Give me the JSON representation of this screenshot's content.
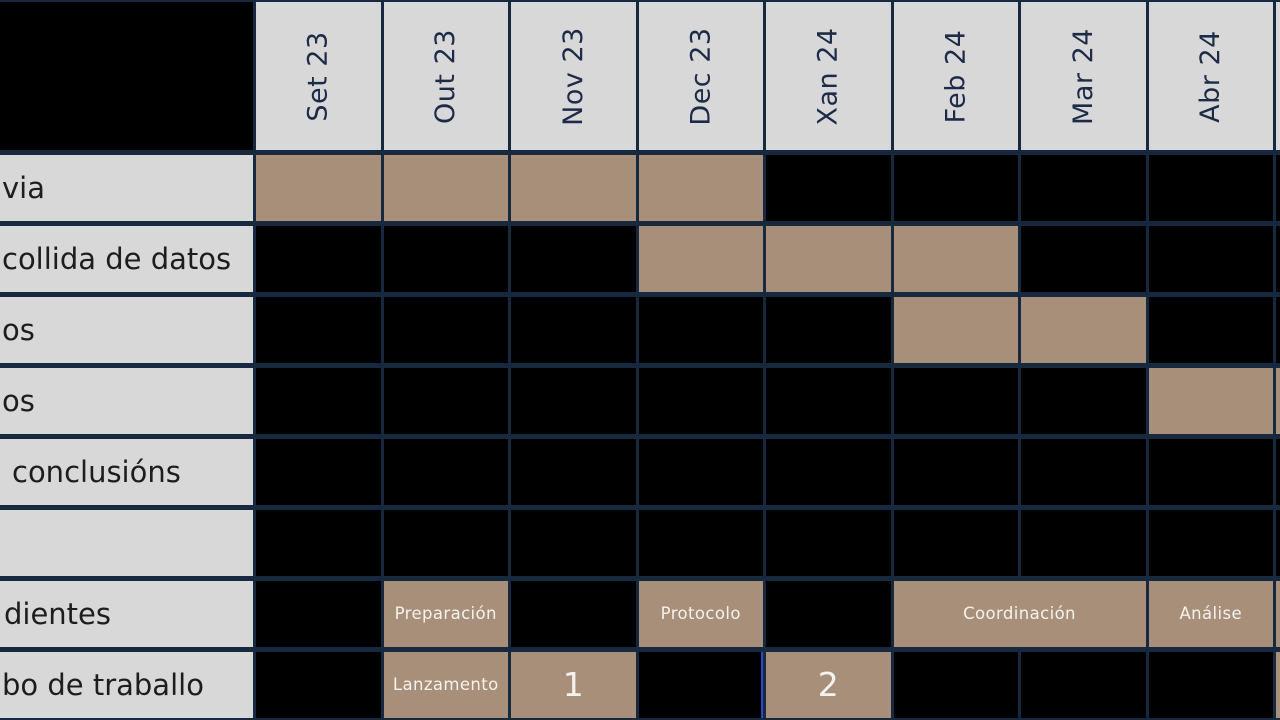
{
  "colors": {
    "grid_line": "#16293f",
    "bar_fill": "#a78f7a",
    "header_bg": "#d8d8d8",
    "label_bg": "#d8d8d8",
    "empty_cell": "#000000",
    "header_text": "#1c2b47",
    "label_text": "#1d1d1d",
    "bar_text": "#f5f2ee",
    "highlight_line": "#2d47c9"
  },
  "months": [
    "Set 23",
    "Out 23",
    "Nov 23",
    "Dec 23",
    "Xan 24",
    "Feb 24",
    "Mar 24",
    "Abr 24",
    ""
  ],
  "rows": [
    {
      "label": "via",
      "indent": 2,
      "cells": [
        {
          "t": "b"
        },
        {
          "t": "b"
        },
        {
          "t": "b"
        },
        {
          "t": "b"
        },
        {
          "t": "e"
        },
        {
          "t": "e"
        },
        {
          "t": "e"
        },
        {
          "t": "e"
        },
        {
          "t": "e"
        }
      ]
    },
    {
      "label": "collida de datos",
      "indent": 2,
      "cells": [
        {
          "t": "e"
        },
        {
          "t": "e"
        },
        {
          "t": "e"
        },
        {
          "t": "b"
        },
        {
          "t": "b"
        },
        {
          "t": "b"
        },
        {
          "t": "e"
        },
        {
          "t": "e"
        },
        {
          "t": "e"
        }
      ]
    },
    {
      "label": "os",
      "indent": 2,
      "cells": [
        {
          "t": "e"
        },
        {
          "t": "e"
        },
        {
          "t": "e"
        },
        {
          "t": "e"
        },
        {
          "t": "e"
        },
        {
          "t": "b"
        },
        {
          "t": "b"
        },
        {
          "t": "e"
        },
        {
          "t": "e"
        }
      ]
    },
    {
      "label": "os",
      "indent": 2,
      "cells": [
        {
          "t": "e"
        },
        {
          "t": "e"
        },
        {
          "t": "e"
        },
        {
          "t": "e"
        },
        {
          "t": "e"
        },
        {
          "t": "e"
        },
        {
          "t": "e"
        },
        {
          "t": "b"
        },
        {
          "t": "b"
        }
      ]
    },
    {
      "label": "conclusións",
      "indent": 12,
      "cells": [
        {
          "t": "e"
        },
        {
          "t": "e"
        },
        {
          "t": "e"
        },
        {
          "t": "e"
        },
        {
          "t": "e"
        },
        {
          "t": "e"
        },
        {
          "t": "e"
        },
        {
          "t": "e"
        },
        {
          "t": "e"
        }
      ]
    },
    {
      "label": "",
      "indent": 2,
      "cells": [
        {
          "t": "e"
        },
        {
          "t": "e"
        },
        {
          "t": "e"
        },
        {
          "t": "e"
        },
        {
          "t": "e"
        },
        {
          "t": "e"
        },
        {
          "t": "e"
        },
        {
          "t": "e"
        },
        {
          "t": "e"
        }
      ]
    },
    {
      "label": "dientes",
      "indent": 4,
      "cells": [
        {
          "t": "e"
        },
        {
          "t": "b",
          "label": "Preparación"
        },
        {
          "t": "e"
        },
        {
          "t": "b",
          "label": "Protocolo"
        },
        {
          "t": "e"
        },
        {
          "t": "b",
          "label": "Coordinación",
          "span": 2
        },
        {
          "t": "b",
          "label": "Análise"
        },
        {
          "t": "b"
        }
      ]
    },
    {
      "label": "bo de traballo",
      "indent": 2,
      "cells": [
        {
          "t": "e"
        },
        {
          "t": "b",
          "label": "Lanzamento"
        },
        {
          "t": "b",
          "label": "1",
          "big": true
        },
        {
          "t": "e",
          "hl": true
        },
        {
          "t": "b",
          "label": "2",
          "big": true
        },
        {
          "t": "e"
        },
        {
          "t": "e"
        },
        {
          "t": "e"
        },
        {
          "t": "b"
        }
      ]
    }
  ],
  "chart_data": {
    "type": "gantt",
    "columns": [
      "Set 23",
      "Out 23",
      "Nov 23",
      "Dec 23",
      "Xan 24",
      "Feb 24",
      "Mar 24",
      "Abr 24"
    ],
    "tasks": [
      {
        "label": "via",
        "bars": [
          {
            "from": "Set 23",
            "to": "Dec 23",
            "text": ""
          }
        ]
      },
      {
        "label": "collida de datos",
        "bars": [
          {
            "from": "Dec 23",
            "to": "Feb 24",
            "text": ""
          }
        ]
      },
      {
        "label": "os",
        "bars": [
          {
            "from": "Feb 24",
            "to": "Mar 24",
            "text": ""
          }
        ]
      },
      {
        "label": "os",
        "bars": [
          {
            "from": "Abr 24",
            "to": "Abr 24",
            "text": "",
            "continues_offscreen": true
          }
        ]
      },
      {
        "label": "conclusións",
        "bars": []
      },
      {
        "label": "",
        "bars": []
      },
      {
        "label": "dientes",
        "bars": [
          {
            "from": "Out 23",
            "to": "Out 23",
            "text": "Preparación"
          },
          {
            "from": "Dec 23",
            "to": "Dec 23",
            "text": "Protocolo"
          },
          {
            "from": "Feb 24",
            "to": "Mar 24",
            "text": "Coordinación"
          },
          {
            "from": "Abr 24",
            "to": "Abr 24",
            "text": "Análise",
            "continues_offscreen": true
          }
        ]
      },
      {
        "label": "bo de traballo",
        "bars": [
          {
            "from": "Out 23",
            "to": "Out 23",
            "text": "Lanzamento"
          },
          {
            "from": "Nov 23",
            "to": "Nov 23",
            "text": "1"
          },
          {
            "from": "Xan 24",
            "to": "Xan 24",
            "text": "2"
          },
          {
            "from": "beyond Abr 24",
            "to": "beyond Abr 24",
            "text": "",
            "continues_offscreen": true
          }
        ]
      }
    ],
    "layout": {
      "header_rotation_deg": -90,
      "label_column": "left, text clipped at left edge",
      "grid": "dark navy gridlines on black empty cells",
      "clipped_right_edge": true
    }
  }
}
